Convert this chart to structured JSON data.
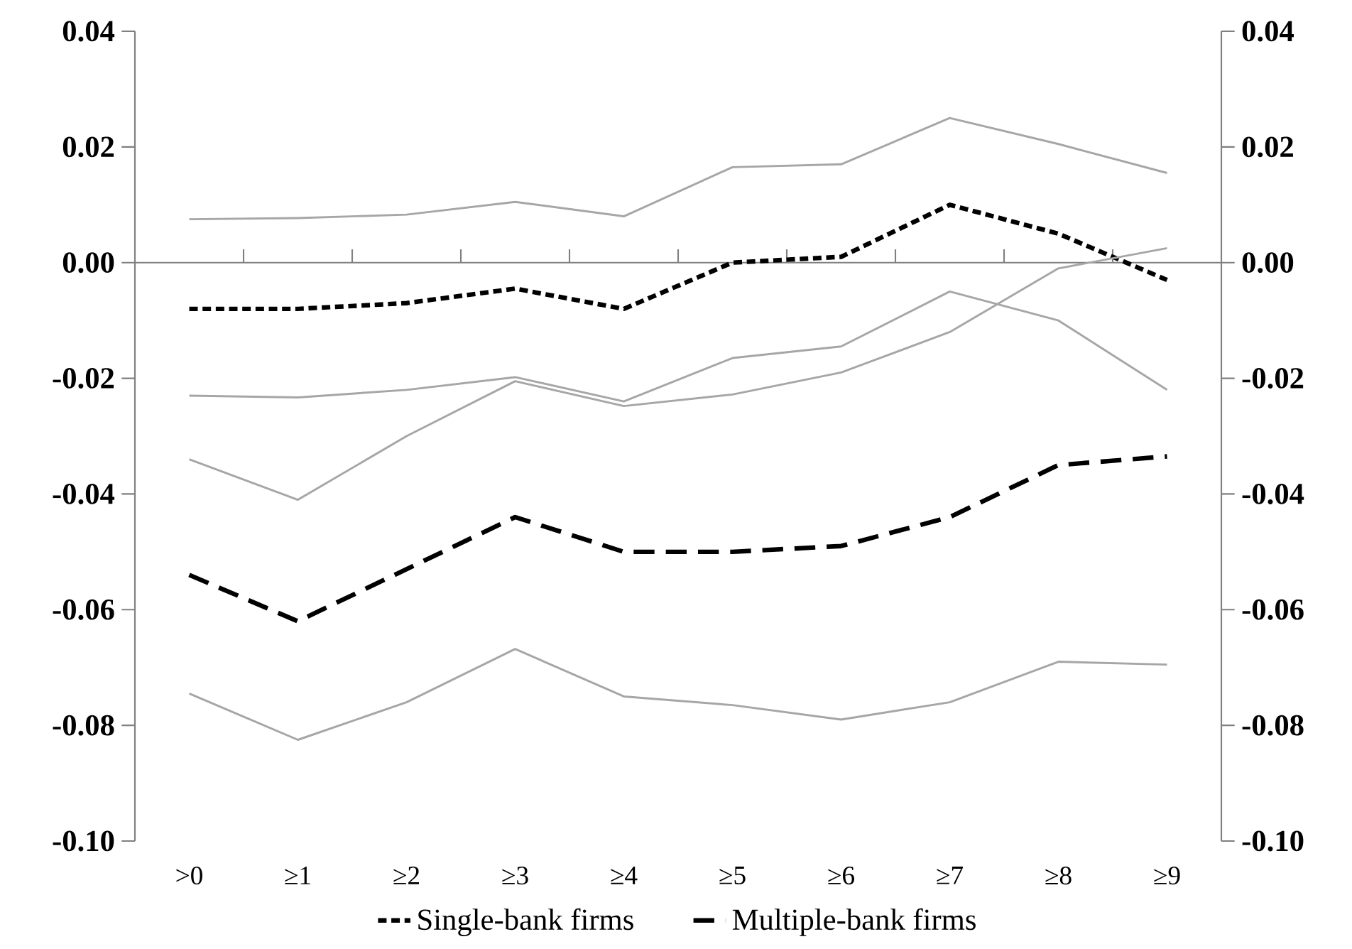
{
  "chart_data": {
    "type": "line",
    "categories": [
      ">0",
      "≥1",
      "≥2",
      "≥3",
      "≥4",
      "≥5",
      "≥6",
      "≥7",
      "≥8",
      "≥9"
    ],
    "series": [
      {
        "name": "Single-bank firms",
        "color": "#000000",
        "line_style": "dotted",
        "values": [
          -0.008,
          -0.008,
          -0.007,
          -0.0045,
          -0.008,
          0.0,
          0.001,
          0.01,
          0.005,
          -0.003
        ]
      },
      {
        "color": "#a6a6a6",
        "line_style": "solid",
        "values": [
          0.0075,
          0.0077,
          0.0083,
          0.0105,
          0.008,
          0.0165,
          0.017,
          0.025,
          0.0205,
          0.0155
        ]
      },
      {
        "color": "#a6a6a6",
        "line_style": "solid",
        "values": [
          -0.023,
          -0.0233,
          -0.022,
          -0.0198,
          -0.024,
          -0.0165,
          -0.0145,
          -0.005,
          -0.01,
          -0.022
        ]
      },
      {
        "name": "Multiple-bank firms",
        "color": "#000000",
        "line_style": "dashed",
        "values": [
          -0.054,
          -0.062,
          -0.053,
          -0.044,
          -0.05,
          -0.05,
          -0.049,
          -0.044,
          -0.035,
          -0.0335
        ]
      },
      {
        "color": "#a6a6a6",
        "line_style": "solid",
        "values": [
          -0.034,
          -0.041,
          -0.03,
          -0.0205,
          -0.0248,
          -0.0228,
          -0.019,
          -0.012,
          -0.001,
          0.0025
        ]
      },
      {
        "color": "#a6a6a6",
        "line_style": "solid",
        "values": [
          -0.0745,
          -0.0825,
          -0.076,
          -0.0668,
          -0.075,
          -0.0765,
          -0.079,
          -0.076,
          -0.069,
          -0.0695
        ]
      }
    ],
    "ylim": [
      -0.1,
      0.04
    ],
    "yticks": [
      {
        "value": -0.1,
        "label": "-0.10"
      },
      {
        "value": -0.08,
        "label": "-0.08"
      },
      {
        "value": -0.06,
        "label": "-0.06"
      },
      {
        "value": -0.04,
        "label": "-0.04"
      },
      {
        "value": -0.02,
        "label": "-0.02"
      },
      {
        "value": 0.0,
        "label": "0.00"
      },
      {
        "value": 0.02,
        "label": "0.02"
      },
      {
        "value": 0.04,
        "label": "0.04"
      }
    ],
    "y2lim": [
      -0.1,
      0.04
    ],
    "y2ticks": [
      {
        "value": -0.1,
        "label": "-0.10"
      },
      {
        "value": -0.08,
        "label": "-0.08"
      },
      {
        "value": -0.06,
        "label": "-0.06"
      },
      {
        "value": -0.04,
        "label": "-0.04"
      },
      {
        "value": -0.02,
        "label": "-0.02"
      },
      {
        "value": 0.0,
        "label": "0.00"
      },
      {
        "value": 0.02,
        "label": "0.02"
      },
      {
        "value": 0.04,
        "label": "0.04"
      }
    ],
    "marker": "none",
    "legend": "bottom"
  }
}
